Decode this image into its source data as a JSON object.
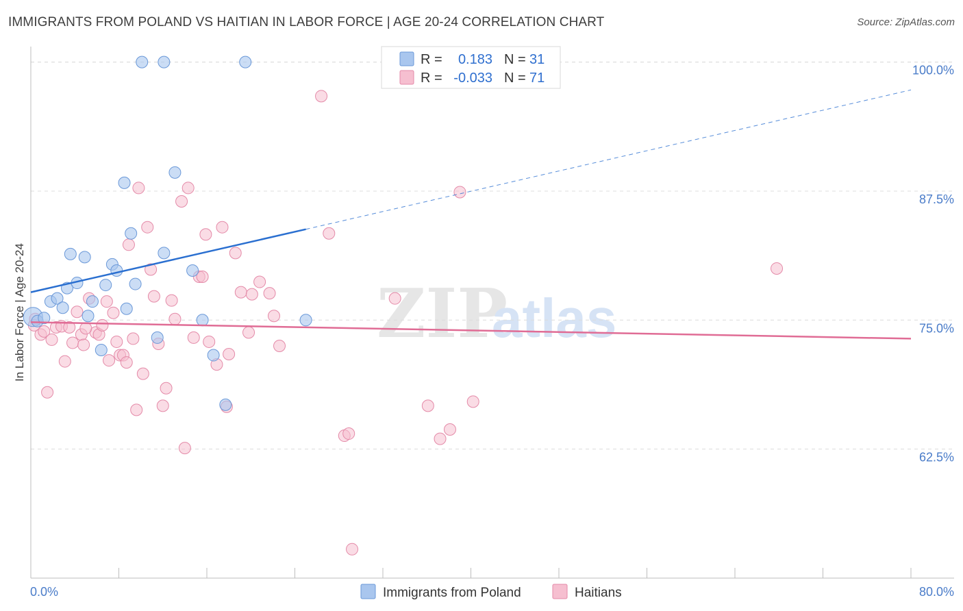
{
  "title": "IMMIGRANTS FROM POLAND VS HAITIAN IN LABOR FORCE | AGE 20-24 CORRELATION CHART",
  "source_label": "Source:",
  "source_value": "ZipAtlas.com",
  "watermark_zip": "ZIP",
  "watermark_atlas": "atlas",
  "colors": {
    "poland_fill": "#a9c6ee",
    "poland_stroke": "#6a98d8",
    "poland_line": "#2a6fd0",
    "haiti_fill": "#f6bfd0",
    "haiti_stroke": "#e48aa8",
    "haiti_line": "#e06c95",
    "grid": "#dcdcdc",
    "tick_text": "#4a7cc9"
  },
  "legend": {
    "poland": {
      "r_label": "R =",
      "r_value": "0.183",
      "n_label": "N =",
      "n_value": "31"
    },
    "haiti": {
      "r_label": "R =",
      "r_value": "-0.033",
      "n_label": "N =",
      "n_value": "71"
    }
  },
  "chart_data": {
    "type": "scatter",
    "title": "IMMIGRANTS FROM POLAND VS HAITIAN IN LABOR FORCE | AGE 20-24 CORRELATION CHART",
    "xlabel": "",
    "ylabel": "In Labor Force | Age 20-24",
    "xlim": [
      0,
      80
    ],
    "ylim": [
      50,
      101.5
    ],
    "x_tick_labels": [
      "0.0%",
      "80.0%"
    ],
    "y_ticks": [
      62.5,
      75.0,
      87.5,
      100.0
    ],
    "y_tick_labels": [
      "62.5%",
      "75.0%",
      "87.5%",
      "100.0%"
    ],
    "legend_position": "bottom",
    "series": [
      {
        "name": "Immigrants from Poland",
        "trend": {
          "x0": 0,
          "y0": 77.7,
          "x1": 25,
          "y1": 83.8,
          "dashed_to_x": 80,
          "dashed_to_y": 97.3
        },
        "points": [
          [
            0.2,
            75.3
          ],
          [
            0.6,
            74.9
          ],
          [
            1.2,
            75.2
          ],
          [
            1.8,
            76.8
          ],
          [
            2.4,
            77.1
          ],
          [
            3.3,
            78.1
          ],
          [
            4.2,
            78.6
          ],
          [
            2.9,
            76.2
          ],
          [
            5.2,
            75.4
          ],
          [
            5.6,
            76.8
          ],
          [
            6.4,
            72.1
          ],
          [
            6.8,
            78.4
          ],
          [
            7.4,
            80.4
          ],
          [
            7.8,
            79.8
          ],
          [
            8.5,
            88.3
          ],
          [
            9.1,
            83.4
          ],
          [
            9.5,
            78.5
          ],
          [
            10.1,
            100.0
          ],
          [
            11.5,
            73.3
          ],
          [
            12.1,
            81.5
          ],
          [
            12.1,
            100.0
          ],
          [
            13.1,
            89.3
          ],
          [
            14.7,
            79.8
          ],
          [
            15.6,
            75.0
          ],
          [
            16.6,
            71.6
          ],
          [
            17.7,
            66.8
          ],
          [
            19.5,
            100.0
          ],
          [
            25.0,
            75.0
          ],
          [
            3.6,
            81.4
          ],
          [
            4.9,
            81.1
          ],
          [
            8.7,
            76.1
          ]
        ]
      },
      {
        "name": "Haitians",
        "trend": {
          "x0": 0,
          "y0": 74.8,
          "x1": 80,
          "y1": 73.2
        },
        "points": [
          [
            0.4,
            75.1
          ],
          [
            0.9,
            73.6
          ],
          [
            1.2,
            73.9
          ],
          [
            1.5,
            68.0
          ],
          [
            1.9,
            73.1
          ],
          [
            2.3,
            74.3
          ],
          [
            2.8,
            74.4
          ],
          [
            3.1,
            71.0
          ],
          [
            3.5,
            74.3
          ],
          [
            3.8,
            72.8
          ],
          [
            4.2,
            75.8
          ],
          [
            4.6,
            73.6
          ],
          [
            4.8,
            72.6
          ],
          [
            5.3,
            77.1
          ],
          [
            5.9,
            73.8
          ],
          [
            6.2,
            73.6
          ],
          [
            6.5,
            74.5
          ],
          [
            6.9,
            76.8
          ],
          [
            7.1,
            71.1
          ],
          [
            7.5,
            75.7
          ],
          [
            7.8,
            72.9
          ],
          [
            8.1,
            71.6
          ],
          [
            8.4,
            71.6
          ],
          [
            8.7,
            70.9
          ],
          [
            8.9,
            82.3
          ],
          [
            9.3,
            73.2
          ],
          [
            9.6,
            66.3
          ],
          [
            9.8,
            87.8
          ],
          [
            10.2,
            69.8
          ],
          [
            10.6,
            84.0
          ],
          [
            10.9,
            79.9
          ],
          [
            11.2,
            77.3
          ],
          [
            11.6,
            72.7
          ],
          [
            12.0,
            66.7
          ],
          [
            12.3,
            68.4
          ],
          [
            12.8,
            76.9
          ],
          [
            13.1,
            75.1
          ],
          [
            13.7,
            86.5
          ],
          [
            14.0,
            62.6
          ],
          [
            14.3,
            87.8
          ],
          [
            14.8,
            73.3
          ],
          [
            15.3,
            79.2
          ],
          [
            15.6,
            79.2
          ],
          [
            15.9,
            83.3
          ],
          [
            16.2,
            72.9
          ],
          [
            16.9,
            70.7
          ],
          [
            17.4,
            84.0
          ],
          [
            17.8,
            66.6
          ],
          [
            18.0,
            71.7
          ],
          [
            18.6,
            81.5
          ],
          [
            19.1,
            77.7
          ],
          [
            19.8,
            73.8
          ],
          [
            20.1,
            77.5
          ],
          [
            20.8,
            78.7
          ],
          [
            21.7,
            77.6
          ],
          [
            22.1,
            75.4
          ],
          [
            22.6,
            72.5
          ],
          [
            26.4,
            96.7
          ],
          [
            27.1,
            83.4
          ],
          [
            28.5,
            63.8
          ],
          [
            28.9,
            64.0
          ],
          [
            29.2,
            52.8
          ],
          [
            33.1,
            77.1
          ],
          [
            36.1,
            66.7
          ],
          [
            37.2,
            63.5
          ],
          [
            38.1,
            64.4
          ],
          [
            39.0,
            87.4
          ],
          [
            40.2,
            67.1
          ],
          [
            67.8,
            80.0
          ],
          [
            0.3,
            74.5
          ],
          [
            5.0,
            74.2
          ]
        ]
      }
    ]
  }
}
